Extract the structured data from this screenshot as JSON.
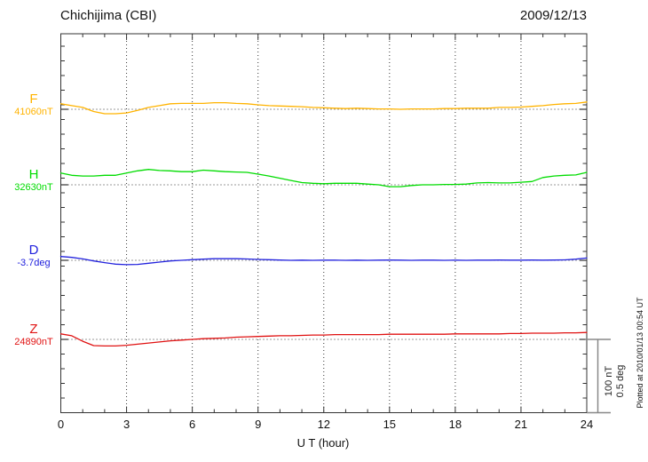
{
  "chart_data": {
    "type": "line",
    "title": "Chichijima (CBI)",
    "date": "2009/12/13",
    "xlabel": "U T (hour)",
    "x_tick_labels": [
      "0",
      "3",
      "6",
      "9",
      "12",
      "15",
      "18",
      "21",
      "24"
    ],
    "xlim": [
      0,
      24
    ],
    "x_step_hours": 0.5,
    "grid": "dotted vertical lines every 3 hours; dotted horizontal baseline per trace",
    "colors": {
      "axis": "#333333",
      "scale_bar": "#888888"
    },
    "scale_bar": {
      "nt_label": "100 nT",
      "deg_label": "0.5 deg",
      "nT": 100,
      "deg": 0.5
    },
    "plotted_note": "Plotted at 2010/01/13 00:54 UT",
    "series": [
      {
        "name": "F",
        "baseline_label": "41060nT",
        "baseline_value": 41060,
        "unit": "nT",
        "color": "#FFB300",
        "delta": [
          7.5,
          5,
          2.5,
          -3,
          -6,
          -6,
          -5,
          -1.5,
          2.5,
          5,
          7.5,
          8,
          8,
          8,
          9,
          9,
          8,
          7.5,
          6,
          5,
          4.5,
          4,
          3.5,
          2.5,
          2,
          1.5,
          1,
          1.5,
          1,
          0.5,
          0.5,
          0,
          0.5,
          0.5,
          0.5,
          1,
          1,
          1.5,
          1.5,
          1.5,
          2.5,
          2.5,
          3,
          4,
          5,
          6.5,
          7.5,
          8,
          10
        ]
      },
      {
        "name": "H",
        "baseline_label": "32630nT",
        "baseline_value": 32630,
        "unit": "nT",
        "color": "#00DC00",
        "delta": [
          16,
          13,
          12,
          12,
          13,
          13,
          16,
          19,
          21,
          19.5,
          19,
          18,
          18,
          20,
          19,
          18,
          17.5,
          17,
          14.5,
          12,
          9,
          6,
          3,
          2,
          1.5,
          2,
          2,
          2,
          1,
          0,
          -2.5,
          -2.5,
          -1,
          0,
          0,
          0.5,
          0.5,
          1,
          2.5,
          3,
          2.5,
          2.5,
          3.5,
          4.5,
          10,
          12,
          13,
          13.5,
          17
        ]
      },
      {
        "name": "D",
        "baseline_label": "-3.7deg",
        "baseline_value": -3.7,
        "unit": "deg",
        "color": "#2222DD",
        "delta": [
          0.026,
          0.02,
          0.01,
          -0.004,
          -0.016,
          -0.026,
          -0.03,
          -0.028,
          -0.02,
          -0.012,
          -0.004,
          0,
          0.004,
          0.008,
          0.011,
          0.011,
          0.011,
          0.009,
          0.006,
          0.004,
          0.002,
          0,
          0.001,
          0,
          0.001,
          0.001,
          0,
          0.001,
          0,
          0.001,
          0.002,
          0.001,
          0,
          0.001,
          0.001,
          0,
          0.001,
          0,
          0.001,
          0.001,
          0.002,
          0.001,
          0.001,
          0.002,
          0.001,
          0.002,
          0.003,
          0.008,
          0.016
        ]
      },
      {
        "name": "Z",
        "baseline_label": "24890nT",
        "baseline_value": 24890,
        "unit": "nT",
        "color": "#E01212",
        "delta": [
          7.5,
          5,
          -2.5,
          -8.5,
          -9,
          -9,
          -8,
          -6.5,
          -5,
          -3.5,
          -2,
          -1,
          0,
          1,
          1.5,
          2,
          3,
          3.5,
          4,
          4.5,
          5,
          5,
          5.5,
          6,
          6,
          6.5,
          6.5,
          6.5,
          6.5,
          6.5,
          7,
          7,
          7,
          7,
          7,
          7,
          7.5,
          7.5,
          7.5,
          7.5,
          7.5,
          8,
          8,
          8.5,
          8.5,
          8.5,
          9,
          9,
          9.5
        ]
      }
    ]
  }
}
